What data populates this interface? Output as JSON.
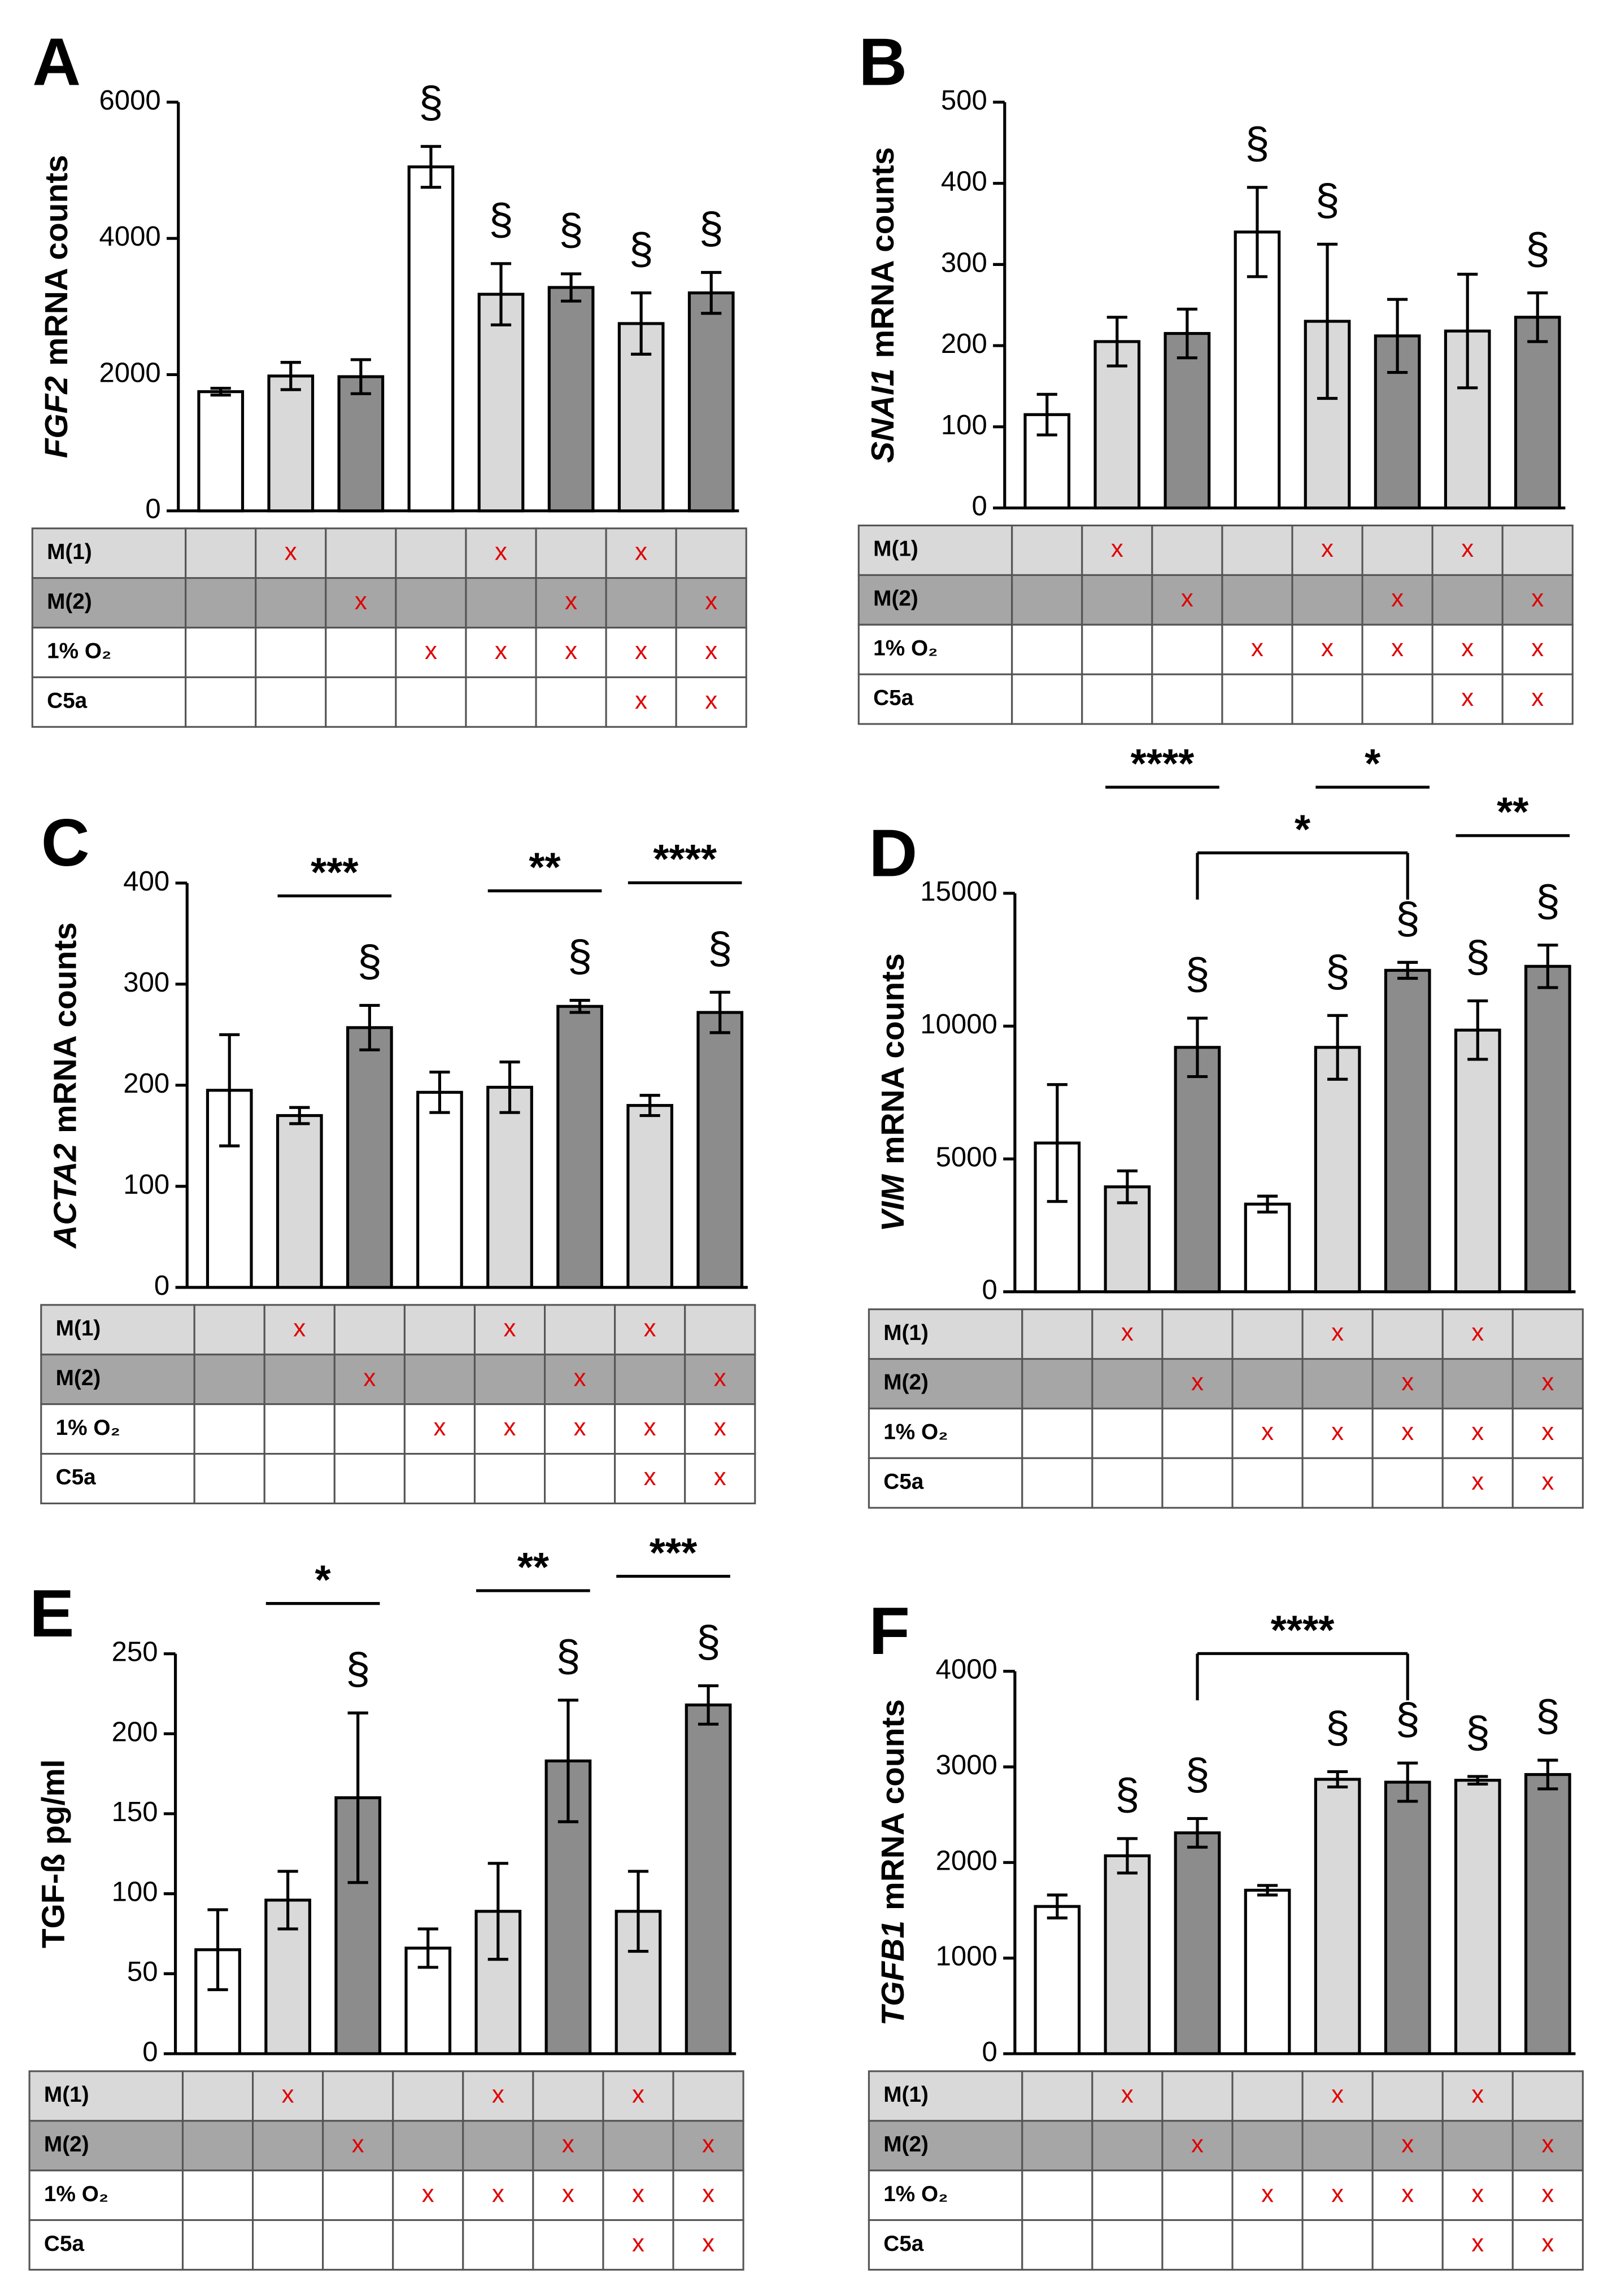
{
  "chart_data": [
    {
      "type": "bar",
      "panel": "A",
      "ylabel_gene": "FGF2",
      "ylabel": "mRNA counts",
      "values": [
        1750,
        1980,
        1970,
        5050,
        3180,
        3280,
        2750,
        3200
      ],
      "errors": [
        50,
        200,
        250,
        300,
        450,
        200,
        450,
        300
      ],
      "colors": [
        "#ffffff",
        "#d9d9d9",
        "#8c8c8c",
        "#ffffff",
        "#d9d9d9",
        "#8c8c8c",
        "#d9d9d9",
        "#8c8c8c"
      ],
      "ylim": [
        0,
        6000
      ],
      "yticks": [
        0,
        2000,
        4000,
        6000
      ],
      "annotations": [
        null,
        null,
        null,
        "§",
        "§",
        "§",
        "§",
        "§"
      ],
      "brackets": []
    },
    {
      "type": "bar",
      "panel": "B",
      "ylabel_gene": "SNAI1",
      "ylabel": "mRNA counts",
      "values": [
        115,
        205,
        215,
        340,
        230,
        212,
        218,
        235
      ],
      "errors": [
        25,
        30,
        30,
        55,
        95,
        45,
        70,
        30
      ],
      "colors": [
        "#ffffff",
        "#d9d9d9",
        "#8c8c8c",
        "#ffffff",
        "#d9d9d9",
        "#8c8c8c",
        "#d9d9d9",
        "#8c8c8c"
      ],
      "ylim": [
        0,
        500
      ],
      "yticks": [
        0,
        100,
        200,
        300,
        400,
        500
      ],
      "annotations": [
        null,
        null,
        null,
        "§",
        "§",
        null,
        null,
        "§"
      ],
      "brackets": []
    },
    {
      "type": "bar",
      "panel": "C",
      "ylabel_gene": "ACTA2",
      "ylabel": "mRNA counts",
      "values": [
        195,
        170,
        257,
        193,
        198,
        278,
        180,
        272
      ],
      "errors": [
        55,
        8,
        22,
        20,
        25,
        6,
        10,
        20
      ],
      "colors": [
        "#ffffff",
        "#d9d9d9",
        "#8c8c8c",
        "#ffffff",
        "#d9d9d9",
        "#8c8c8c",
        "#d9d9d9",
        "#8c8c8c"
      ],
      "ylim": [
        0,
        400
      ],
      "yticks": [
        0,
        100,
        200,
        300,
        400
      ],
      "annotations": [
        null,
        null,
        "§",
        null,
        null,
        "§",
        null,
        "§"
      ],
      "brackets": [
        {
          "from": 1,
          "to": 2,
          "label": "***",
          "drop": false
        },
        {
          "from": 4,
          "to": 5,
          "label": "**",
          "drop": false
        },
        {
          "from": 6,
          "to": 7,
          "label": "****",
          "drop": false
        }
      ]
    },
    {
      "type": "bar",
      "panel": "D",
      "ylabel_gene": "VIM",
      "ylabel": "mRNA counts",
      "values": [
        5600,
        3950,
        9200,
        3300,
        9200,
        12100,
        9850,
        12250
      ],
      "errors": [
        2200,
        600,
        1100,
        300,
        1200,
        300,
        1100,
        800
      ],
      "colors": [
        "#ffffff",
        "#d9d9d9",
        "#8c8c8c",
        "#ffffff",
        "#d9d9d9",
        "#8c8c8c",
        "#d9d9d9",
        "#8c8c8c"
      ],
      "ylim": [
        0,
        15000
      ],
      "yticks": [
        0,
        5000,
        10000,
        15000
      ],
      "annotations": [
        null,
        null,
        "§",
        null,
        "§",
        "§",
        "§",
        "§"
      ],
      "brackets": [
        {
          "from": 2,
          "to": 5,
          "label": "*",
          "drop": true
        },
        {
          "from": 1,
          "to": 2,
          "label": "****",
          "drop": false
        },
        {
          "from": 4,
          "to": 5,
          "label": "*",
          "drop": false
        },
        {
          "from": 6,
          "to": 7,
          "label": "**",
          "drop": false
        }
      ]
    },
    {
      "type": "bar",
      "panel": "E",
      "ylabel": "TGF-ß pg/ml",
      "values": [
        65,
        96,
        160,
        66,
        89,
        183,
        89,
        218
      ],
      "errors": [
        25,
        18,
        53,
        12,
        30,
        38,
        25,
        12
      ],
      "colors": [
        "#ffffff",
        "#d9d9d9",
        "#8c8c8c",
        "#ffffff",
        "#d9d9d9",
        "#8c8c8c",
        "#d9d9d9",
        "#8c8c8c"
      ],
      "ylim": [
        0,
        250
      ],
      "yticks": [
        0,
        50,
        100,
        150,
        200,
        250
      ],
      "annotations": [
        null,
        null,
        "§",
        null,
        null,
        "§",
        null,
        "§"
      ],
      "brackets": [
        {
          "from": 1,
          "to": 2,
          "label": "*",
          "drop": false
        },
        {
          "from": 4,
          "to": 5,
          "label": "**",
          "drop": false
        },
        {
          "from": 6,
          "to": 7,
          "label": "***",
          "drop": false
        }
      ]
    },
    {
      "type": "bar",
      "panel": "F",
      "ylabel_gene": "TGFB1",
      "ylabel": "mRNA counts",
      "values": [
        1540,
        2070,
        2310,
        1710,
        2870,
        2840,
        2860,
        2920
      ],
      "errors": [
        120,
        180,
        150,
        50,
        80,
        200,
        40,
        150
      ],
      "colors": [
        "#ffffff",
        "#d9d9d9",
        "#8c8c8c",
        "#ffffff",
        "#d9d9d9",
        "#8c8c8c",
        "#d9d9d9",
        "#8c8c8c"
      ],
      "ylim": [
        0,
        4000
      ],
      "yticks": [
        0,
        1000,
        2000,
        3000,
        4000
      ],
      "annotations": [
        null,
        "§",
        "§",
        null,
        "§",
        "§",
        "§",
        "§"
      ],
      "brackets": [
        {
          "from": 2,
          "to": 5,
          "label": "****",
          "drop": true
        }
      ]
    }
  ],
  "table": {
    "rows": [
      "M(1)",
      "M(2)",
      "1% O₂",
      "C5a"
    ],
    "mark": "x",
    "row_colors": [
      "#d9d9d9",
      "#a6a6a6",
      "#ffffff",
      "#ffffff"
    ],
    "marks": [
      [
        false,
        true,
        false,
        false,
        true,
        false,
        true,
        false
      ],
      [
        false,
        false,
        true,
        false,
        false,
        true,
        false,
        true
      ],
      [
        false,
        false,
        false,
        true,
        true,
        true,
        true,
        true
      ],
      [
        false,
        false,
        false,
        false,
        false,
        false,
        true,
        true
      ]
    ]
  }
}
